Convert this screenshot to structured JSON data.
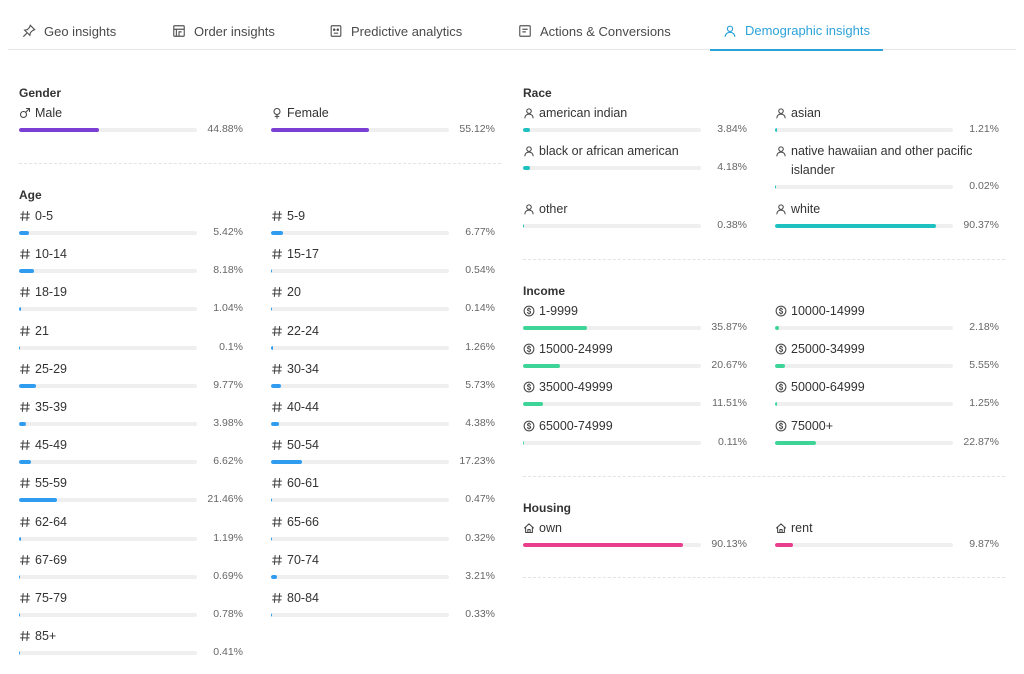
{
  "tabs": [
    {
      "label": "Geo insights",
      "icon": "pin-icon",
      "active": false
    },
    {
      "label": "Order insights",
      "icon": "store-icon",
      "active": false
    },
    {
      "label": "Predictive analytics",
      "icon": "robot-icon",
      "active": false
    },
    {
      "label": "Actions & Conversions",
      "icon": "window-icon",
      "active": false
    },
    {
      "label": "Demographic insights",
      "icon": "user-icon",
      "active": true
    }
  ],
  "colors": {
    "gender": "#7b3fd4",
    "age": "#2f9cf0",
    "race": "#1fc1c0",
    "income": "#3dd597",
    "housing": "#e83e8c",
    "accent": "#2ca2d9"
  },
  "gender": {
    "title": "Gender",
    "items": [
      {
        "label": "Male",
        "icon": "male-icon",
        "percent": 44.88,
        "display": "44.88%"
      },
      {
        "label": "Female",
        "icon": "female-icon",
        "percent": 55.12,
        "display": "55.12%"
      }
    ]
  },
  "age": {
    "title": "Age",
    "items": [
      {
        "label": "0-5",
        "icon": "hash-icon",
        "percent": 5.42,
        "display": "5.42%"
      },
      {
        "label": "5-9",
        "icon": "hash-icon",
        "percent": 6.77,
        "display": "6.77%"
      },
      {
        "label": "10-14",
        "icon": "hash-icon",
        "percent": 8.18,
        "display": "8.18%"
      },
      {
        "label": "15-17",
        "icon": "hash-icon",
        "percent": 0.54,
        "display": "0.54%"
      },
      {
        "label": "18-19",
        "icon": "hash-icon",
        "percent": 1.04,
        "display": "1.04%"
      },
      {
        "label": "20",
        "icon": "hash-icon",
        "percent": 0.14,
        "display": "0.14%"
      },
      {
        "label": "21",
        "icon": "hash-icon",
        "percent": 0.1,
        "display": "0.1%"
      },
      {
        "label": "22-24",
        "icon": "hash-icon",
        "percent": 1.26,
        "display": "1.26%"
      },
      {
        "label": "25-29",
        "icon": "hash-icon",
        "percent": 9.77,
        "display": "9.77%"
      },
      {
        "label": "30-34",
        "icon": "hash-icon",
        "percent": 5.73,
        "display": "5.73%"
      },
      {
        "label": "35-39",
        "icon": "hash-icon",
        "percent": 3.98,
        "display": "3.98%"
      },
      {
        "label": "40-44",
        "icon": "hash-icon",
        "percent": 4.38,
        "display": "4.38%"
      },
      {
        "label": "45-49",
        "icon": "hash-icon",
        "percent": 6.62,
        "display": "6.62%"
      },
      {
        "label": "50-54",
        "icon": "hash-icon",
        "percent": 17.23,
        "display": "17.23%"
      },
      {
        "label": "55-59",
        "icon": "hash-icon",
        "percent": 21.46,
        "display": "21.46%"
      },
      {
        "label": "60-61",
        "icon": "hash-icon",
        "percent": 0.47,
        "display": "0.47%"
      },
      {
        "label": "62-64",
        "icon": "hash-icon",
        "percent": 1.19,
        "display": "1.19%"
      },
      {
        "label": "65-66",
        "icon": "hash-icon",
        "percent": 0.32,
        "display": "0.32%"
      },
      {
        "label": "67-69",
        "icon": "hash-icon",
        "percent": 0.69,
        "display": "0.69%"
      },
      {
        "label": "70-74",
        "icon": "hash-icon",
        "percent": 3.21,
        "display": "3.21%"
      },
      {
        "label": "75-79",
        "icon": "hash-icon",
        "percent": 0.78,
        "display": "0.78%"
      },
      {
        "label": "80-84",
        "icon": "hash-icon",
        "percent": 0.33,
        "display": "0.33%"
      },
      {
        "label": "85+",
        "icon": "hash-icon",
        "percent": 0.41,
        "display": "0.41%"
      }
    ]
  },
  "race": {
    "title": "Race",
    "items": [
      {
        "label": "american indian",
        "icon": "user-icon",
        "percent": 3.84,
        "display": "3.84%"
      },
      {
        "label": "asian",
        "icon": "user-icon",
        "percent": 1.21,
        "display": "1.21%"
      },
      {
        "label": "black or african american",
        "icon": "user-icon",
        "percent": 4.18,
        "display": "4.18%"
      },
      {
        "label": "native hawaiian and other pacific islander",
        "icon": "user-icon",
        "percent": 0.02,
        "display": "0.02%"
      },
      {
        "label": "other",
        "icon": "user-icon",
        "percent": 0.38,
        "display": "0.38%"
      },
      {
        "label": "white",
        "icon": "user-icon",
        "percent": 90.37,
        "display": "90.37%"
      }
    ]
  },
  "income": {
    "title": "Income",
    "items": [
      {
        "label": "1-9999",
        "icon": "dollar-icon",
        "percent": 35.87,
        "display": "35.87%"
      },
      {
        "label": "10000-14999",
        "icon": "dollar-icon",
        "percent": 2.18,
        "display": "2.18%"
      },
      {
        "label": "15000-24999",
        "icon": "dollar-icon",
        "percent": 20.67,
        "display": "20.67%"
      },
      {
        "label": "25000-34999",
        "icon": "dollar-icon",
        "percent": 5.55,
        "display": "5.55%"
      },
      {
        "label": "35000-49999",
        "icon": "dollar-icon",
        "percent": 11.51,
        "display": "11.51%"
      },
      {
        "label": "50000-64999",
        "icon": "dollar-icon",
        "percent": 1.25,
        "display": "1.25%"
      },
      {
        "label": "65000-74999",
        "icon": "dollar-icon",
        "percent": 0.11,
        "display": "0.11%"
      },
      {
        "label": "75000+",
        "icon": "dollar-icon",
        "percent": 22.87,
        "display": "22.87%"
      }
    ]
  },
  "housing": {
    "title": "Housing",
    "items": [
      {
        "label": "own",
        "icon": "home-icon",
        "percent": 90.13,
        "display": "90.13%"
      },
      {
        "label": "rent",
        "icon": "home-icon",
        "percent": 9.87,
        "display": "9.87%"
      }
    ]
  }
}
